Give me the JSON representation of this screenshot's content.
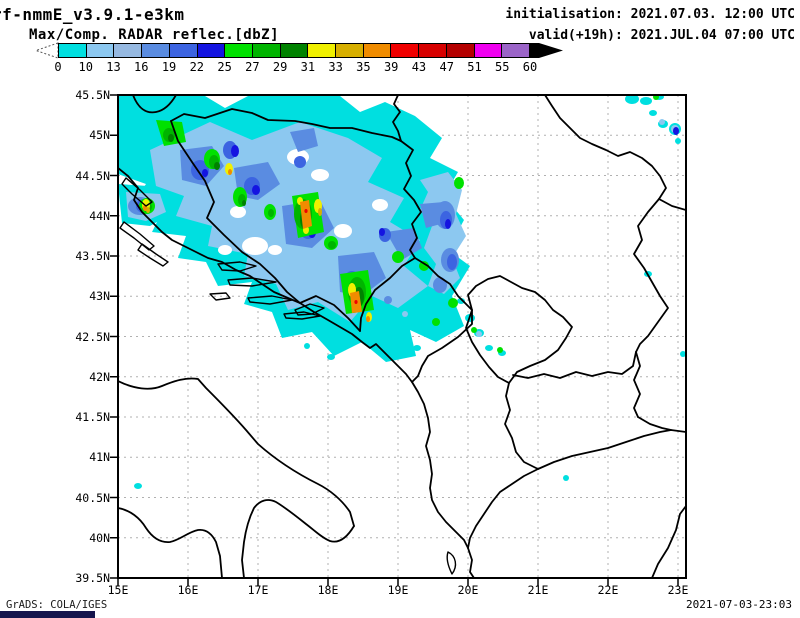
{
  "header": {
    "model_title": "rf-nmmE_v3.9.1-e3km",
    "field_title": "Max/Comp. RADAR reflec.[dbZ]",
    "init_label": "initialisation: 2021.07.03. 12:00 UTC",
    "valid_label": "valid(+19h): 2021.JUL.04 07:00 UTC"
  },
  "colorbar": {
    "levels": [
      "0",
      "10",
      "13",
      "16",
      "19",
      "22",
      "25",
      "27",
      "29",
      "31",
      "33",
      "35",
      "39",
      "43",
      "47",
      "51",
      "55",
      "60"
    ],
    "colors": [
      "#00dfe0",
      "#8cc8f0",
      "#96b9e1",
      "#5a8ce1",
      "#3c64e1",
      "#1414e1",
      "#00e100",
      "#00b400",
      "#008200",
      "#f0f000",
      "#d7af00",
      "#f08c00",
      "#f00000",
      "#d70000",
      "#b40000",
      "#f000f0",
      "#9b64c8"
    ],
    "overflow_color": "#000000",
    "units": "dbZ"
  },
  "map": {
    "lat_labels": [
      "45.5N",
      "45N",
      "44.5N",
      "44N",
      "43.5N",
      "43N",
      "42.5N",
      "42N",
      "41.5N",
      "41N",
      "40.5N",
      "40N",
      "39.5N"
    ],
    "lon_labels": [
      "15E",
      "16E",
      "17E",
      "18E",
      "19E",
      "20E",
      "21E",
      "22E",
      "23E"
    ]
  },
  "footer": {
    "credit": "GrADS: COLA/IGES",
    "timestamp": "2021-07-03-23:03"
  },
  "chart_data": {
    "type": "heatmap",
    "title": "Max/Comp. RADAR reflec.[dbZ]",
    "model": "rf-nmmE_v3.9.1-e3km",
    "initialisation": "2021.07.03. 12:00 UTC",
    "valid": "(+19h) 2021.JUL.04 07:00 UTC",
    "units": "dbZ",
    "levels": [
      0,
      10,
      13,
      16,
      19,
      22,
      25,
      27,
      29,
      31,
      33,
      35,
      39,
      43,
      47,
      51,
      55,
      60
    ],
    "palette": [
      "#00dfe0",
      "#8cc8f0",
      "#96b9e1",
      "#5a8ce1",
      "#3c64e1",
      "#1414e1",
      "#00e100",
      "#00b400",
      "#008200",
      "#f0f000",
      "#d7af00",
      "#f08c00",
      "#f00000",
      "#d70000",
      "#b40000",
      "#f000f0",
      "#9b64c8"
    ],
    "lon_range_deg_east": [
      15,
      23.1
    ],
    "lat_range_deg_north": [
      39.5,
      45.5
    ],
    "grid": "dashed graticule, 0.5 deg latitude / 1 deg longitude",
    "max_reflectivity_dbz": 43,
    "features": [
      {
        "name": "main convective band",
        "extent": "15.0-20.0E / 43.0-45.5N over Croatia and Bosnia, oriented NW-SE",
        "intensity": "10-43 dbZ, cores 31-43 dbZ near 17.6E 44.2N and 18.4E 43.9N"
      },
      {
        "name": "western coastal cell",
        "extent": "~15.2E 44.1N",
        "intensity": "cores to ~39 dbZ"
      },
      {
        "name": "scattered weak echoes",
        "extent": "18.0-20.5E / 42.5-43.5N (Montenegro / W Serbia)",
        "intensity": "< 10 dbZ"
      },
      {
        "name": "northeast corner echoes",
        "extent": "~22.4-23.1E / 45.0-45.5N",
        "intensity": "mostly < 16 dbZ, one small 22-25 dbZ core"
      },
      {
        "name": "isolated specks",
        "extent": "15.3E 40.6N and 21.4E 40.6N",
        "intensity": "< 10 dbZ"
      }
    ]
  }
}
